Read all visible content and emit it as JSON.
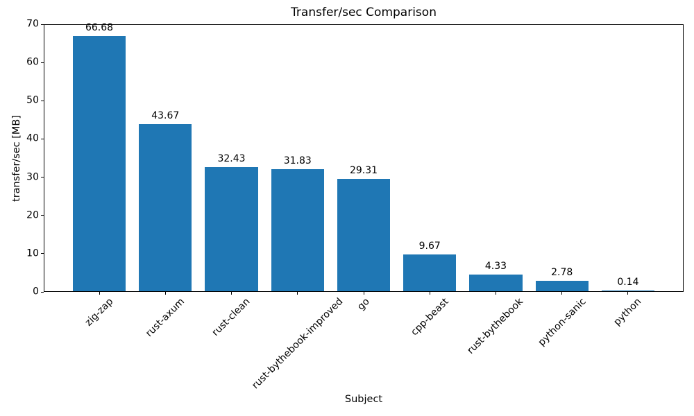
{
  "chart_data": {
    "type": "bar",
    "title": "Transfer/sec Comparison",
    "xlabel": "Subject",
    "ylabel": "transfer/sec [MB]",
    "categories": [
      "zig-zap",
      "rust-axum",
      "rust-clean",
      "rust-bythebook-improved",
      "go",
      "cpp-beast",
      "rust-bythebook",
      "python-sanic",
      "python"
    ],
    "values": [
      66.68,
      43.67,
      32.43,
      31.83,
      29.31,
      9.67,
      4.33,
      2.78,
      0.14
    ],
    "bar_value_labels": [
      "66.68",
      "43.67",
      "32.43",
      "31.83",
      "29.31",
      "9.67",
      "4.33",
      "2.78",
      "0.14"
    ],
    "ylim": [
      0,
      70
    ],
    "yticks": [
      "0",
      "10",
      "20",
      "30",
      "40",
      "50",
      "60",
      "70"
    ],
    "xtick_rotation_deg": 45,
    "grid": false,
    "legend": null,
    "bar_color": "#1f77b4",
    "axis_color": "#000000",
    "background_color": "#ffffff"
  }
}
